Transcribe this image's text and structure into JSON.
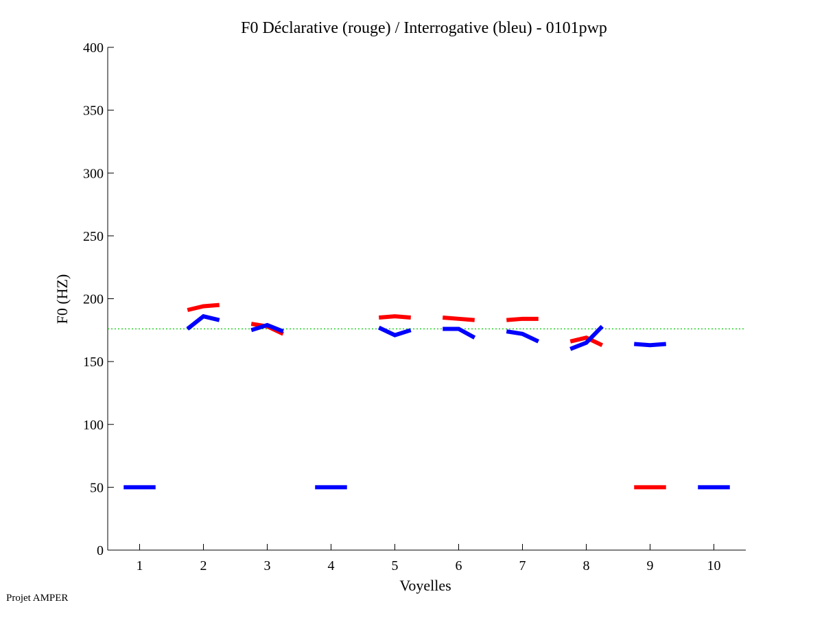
{
  "chart_data": {
    "type": "line",
    "title": "F0 Déclarative (rouge) / Interrogative (bleu) - 0101pwp",
    "xlabel": "Voyelles",
    "ylabel": "F0 (HZ)",
    "xlim": [
      0.5,
      10.5
    ],
    "ylim": [
      0,
      400
    ],
    "xticks": [
      1,
      2,
      3,
      4,
      5,
      6,
      7,
      8,
      9,
      10
    ],
    "yticks": [
      0,
      50,
      100,
      150,
      200,
      250,
      300,
      350,
      400
    ],
    "grid": false,
    "reference_line": {
      "y": 176,
      "color": "#00cc00",
      "style": "dotted"
    },
    "series": [
      {
        "color": "#ff0000",
        "segments": [
          {
            "vowel": 2,
            "values": [
              191,
              194,
              195
            ]
          },
          {
            "vowel": 3,
            "values": [
              180,
              178,
              172
            ]
          },
          {
            "vowel": 5,
            "values": [
              185,
              186,
              185
            ]
          },
          {
            "vowel": 6,
            "values": [
              185,
              184,
              183
            ]
          },
          {
            "vowel": 7,
            "values": [
              183,
              184,
              184
            ]
          },
          {
            "vowel": 8,
            "values": [
              166,
              169,
              163
            ]
          },
          {
            "vowel": 9,
            "values": [
              50,
              50,
              50
            ]
          }
        ]
      },
      {
        "color": "#0000ff",
        "segments": [
          {
            "vowel": 1,
            "values": [
              50,
              50,
              50
            ]
          },
          {
            "vowel": 2,
            "values": [
              176,
              186,
              183
            ]
          },
          {
            "vowel": 3,
            "values": [
              175,
              179,
              174
            ]
          },
          {
            "vowel": 4,
            "values": [
              50,
              50,
              50
            ]
          },
          {
            "vowel": 5,
            "values": [
              177,
              171,
              175
            ]
          },
          {
            "vowel": 6,
            "values": [
              176,
              176,
              169
            ]
          },
          {
            "vowel": 7,
            "values": [
              174,
              172,
              166
            ]
          },
          {
            "vowel": 8,
            "values": [
              160,
              165,
              178
            ]
          },
          {
            "vowel": 9,
            "values": [
              164,
              163,
              164
            ]
          },
          {
            "vowel": 10,
            "values": [
              50,
              50,
              50
            ]
          }
        ]
      }
    ]
  },
  "footer": {
    "credit": "Projet AMPER"
  }
}
